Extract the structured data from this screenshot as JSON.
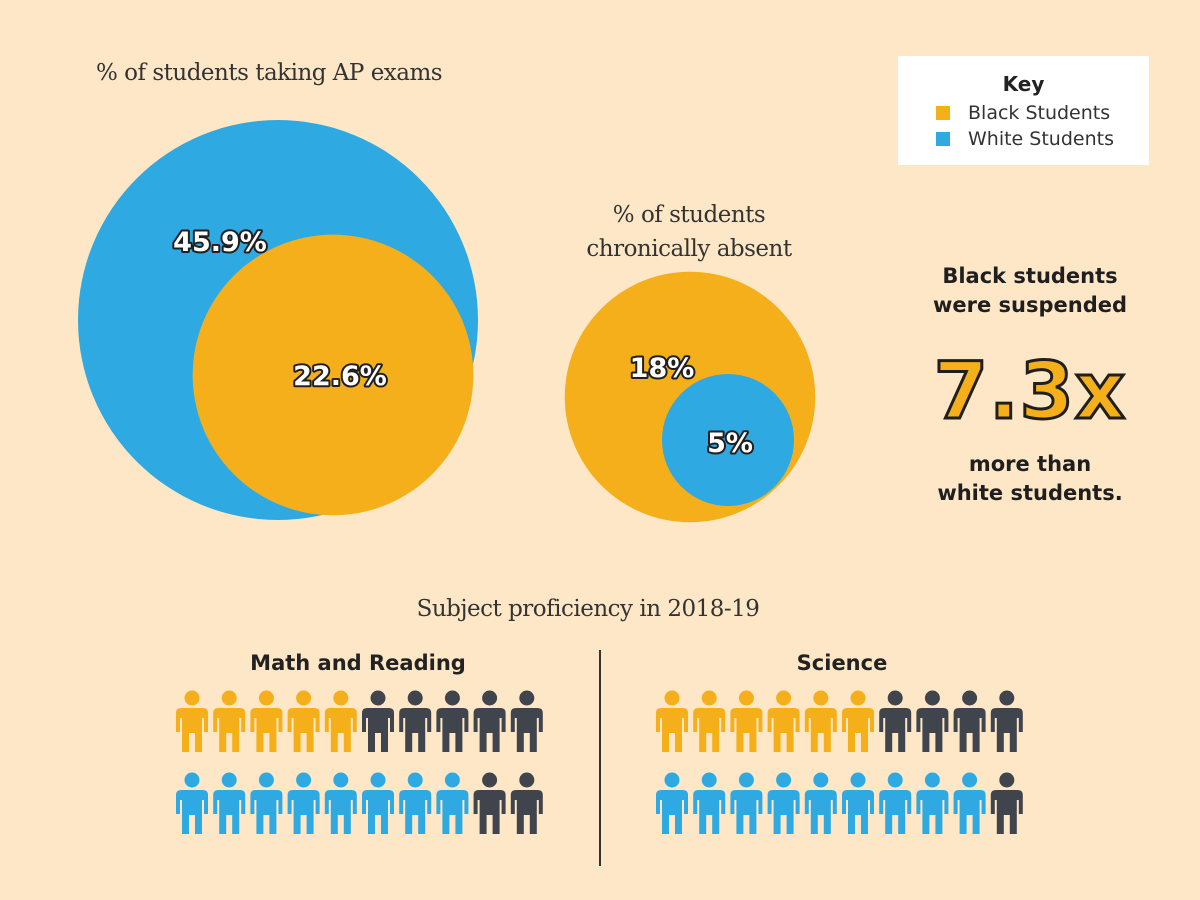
{
  "colors": {
    "black_students": "#f4af1b",
    "white_students": "#2fa9e1",
    "not_proficient": "#40454d",
    "background": "#fde7c6"
  },
  "key": {
    "title": "Key",
    "items": [
      {
        "label": "Black Students",
        "color": "#f4af1b"
      },
      {
        "label": "White Students",
        "color": "#2fa9e1"
      }
    ]
  },
  "suspension": {
    "line1": "Black students",
    "line2": "were suspended",
    "multiplier": "7.3x",
    "line3": "more than",
    "line4": "white students."
  },
  "chart_data": [
    {
      "type": "bubble",
      "title": "% of students taking AP exams",
      "series": [
        {
          "name": "White Students",
          "value": 45.9,
          "label": "45.9%"
        },
        {
          "name": "Black Students",
          "value": 22.6,
          "label": "22.6%"
        }
      ]
    },
    {
      "type": "bubble",
      "title_line1": "% of students",
      "title_line2": "chronically absent",
      "series": [
        {
          "name": "Black Students",
          "value": 18,
          "label": "18%"
        },
        {
          "name": "White Students",
          "value": 5,
          "label": "5%"
        }
      ]
    },
    {
      "type": "pictogram",
      "title": "Subject proficiency in 2018-19",
      "groups": [
        {
          "name": "Math and Reading",
          "total": 10,
          "black_proficient": 5,
          "white_proficient": 8
        },
        {
          "name": "Science",
          "total": 10,
          "black_proficient": 6,
          "white_proficient": 9
        }
      ]
    }
  ]
}
